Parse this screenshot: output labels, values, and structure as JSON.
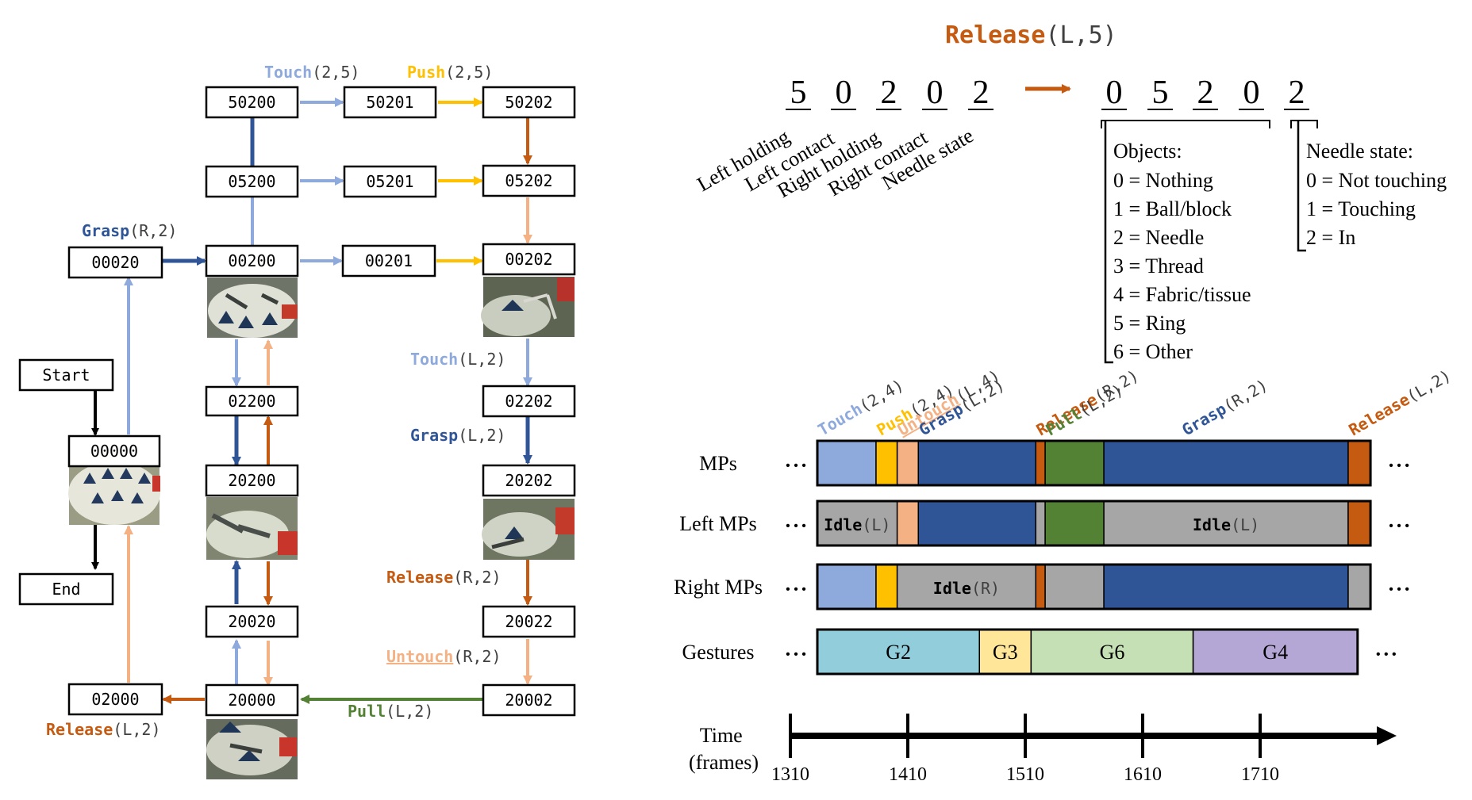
{
  "colors": {
    "touch": "#8EA9DB",
    "push": "#FFC000",
    "untouch": "#F4B183",
    "grasp": "#2F5597",
    "release": "#C55A11",
    "pull": "#548235",
    "idle": "#A6A6A6",
    "g2": "#92CDDC",
    "g3": "#FFE699",
    "g6": "#C5E0B4",
    "g4": "#B4A7D6"
  },
  "flow": {
    "states": {
      "start": "Start",
      "end": "End",
      "s00000": "00000",
      "s00020": "00020",
      "s02000": "02000",
      "s00200": "00200",
      "s05200": "05200",
      "s50200": "50200",
      "s02200": "02200",
      "s20200": "20200",
      "s20020": "20020",
      "s20000": "20000",
      "s00201": "00201",
      "s05201": "05201",
      "s50201": "50201",
      "s00202": "00202",
      "s05202": "05202",
      "s50202": "50202",
      "s02202": "02202",
      "s20202": "20202",
      "s20022": "20022",
      "s20002": "20002"
    },
    "labels": {
      "touch25": {
        "name": "Touch",
        "args": "(2,5)"
      },
      "push25": {
        "name": "Push",
        "args": "(2,5)"
      },
      "graspR2": {
        "name": "Grasp",
        "args": "(R,2)"
      },
      "touchL2": {
        "name": "Touch",
        "args": "(L,2)"
      },
      "graspL2": {
        "name": "Grasp",
        "args": "(L,2)"
      },
      "releaseR2": {
        "name": "Release",
        "args": "(R,2)"
      },
      "untouchR2": {
        "name": "Untouch",
        "args": "(R,2)"
      },
      "pullL2": {
        "name": "Pull",
        "args": "(L,2)"
      },
      "releaseL2": {
        "name": "Release",
        "args": "(L,2)"
      }
    }
  },
  "encoding": {
    "title": {
      "name": "Release",
      "args": "(L,5)"
    },
    "before_digits": [
      "5",
      "0",
      "2",
      "0",
      "2"
    ],
    "after_digits": [
      "0",
      "5",
      "2",
      "0",
      "2"
    ],
    "digit_labels": [
      "Left holding",
      "Left contact",
      "Right holding",
      "Right contact",
      "Needle state"
    ],
    "objects_legend": {
      "title": "Objects:",
      "items": [
        "0 = Nothing",
        "1 = Ball/block",
        "2 = Needle",
        "3 = Thread",
        "4 = Fabric/tissue",
        "5 = Ring",
        "6 = Other"
      ]
    },
    "needle_legend": {
      "title": "Needle state:",
      "items": [
        "0 = Not touching",
        "1 = Touching",
        "2 = In"
      ]
    }
  },
  "timeline": {
    "top_labels": [
      {
        "name": "Touch",
        "args": "(2,4)",
        "color": "touch"
      },
      {
        "name": "Push",
        "args": "(2,4)",
        "color": "push"
      },
      {
        "name": "Untouch",
        "args": "(L,4)",
        "color": "untouch"
      },
      {
        "name": "Grasp",
        "args": "(L,2)",
        "color": "grasp"
      },
      {
        "name": "Release",
        "args": "(R,2)",
        "color": "release"
      },
      {
        "name": "Pull",
        "args": "(L,2)",
        "color": "pull"
      },
      {
        "name": "Grasp",
        "args": "(R,2)",
        "color": "grasp"
      },
      {
        "name": "Release",
        "args": "(L,2)",
        "color": "release"
      }
    ],
    "rows": [
      {
        "label": "MPs",
        "segments": [
          {
            "start": 1310,
            "end": 1360,
            "color": "touch",
            "text": ""
          },
          {
            "start": 1360,
            "end": 1378,
            "color": "push",
            "text": ""
          },
          {
            "start": 1378,
            "end": 1396,
            "color": "untouch",
            "text": ""
          },
          {
            "start": 1396,
            "end": 1496,
            "color": "grasp",
            "text": ""
          },
          {
            "start": 1496,
            "end": 1504,
            "color": "release",
            "text": ""
          },
          {
            "start": 1504,
            "end": 1554,
            "color": "pull",
            "text": ""
          },
          {
            "start": 1554,
            "end": 1762,
            "color": "grasp",
            "text": ""
          },
          {
            "start": 1762,
            "end": 1781,
            "color": "release",
            "text": ""
          }
        ]
      },
      {
        "label": "Left MPs",
        "segments": [
          {
            "start": 1310,
            "end": 1378,
            "color": "idle",
            "text": "Idle",
            "args": "(L)"
          },
          {
            "start": 1378,
            "end": 1396,
            "color": "untouch",
            "text": ""
          },
          {
            "start": 1396,
            "end": 1496,
            "color": "grasp",
            "text": ""
          },
          {
            "start": 1496,
            "end": 1504,
            "color": "idle",
            "text": ""
          },
          {
            "start": 1504,
            "end": 1554,
            "color": "pull",
            "text": ""
          },
          {
            "start": 1554,
            "end": 1762,
            "color": "idle",
            "text": "Idle",
            "args": "(L)"
          },
          {
            "start": 1762,
            "end": 1781,
            "color": "release",
            "text": ""
          }
        ]
      },
      {
        "label": "Right MPs",
        "segments": [
          {
            "start": 1310,
            "end": 1360,
            "color": "touch",
            "text": ""
          },
          {
            "start": 1360,
            "end": 1378,
            "color": "push",
            "text": ""
          },
          {
            "start": 1378,
            "end": 1496,
            "color": "idle",
            "text": "Idle",
            "args": "(R)"
          },
          {
            "start": 1496,
            "end": 1504,
            "color": "release",
            "text": ""
          },
          {
            "start": 1504,
            "end": 1554,
            "color": "idle",
            "text": ""
          },
          {
            "start": 1554,
            "end": 1762,
            "color": "grasp",
            "text": ""
          },
          {
            "start": 1762,
            "end": 1781,
            "color": "idle",
            "text": ""
          }
        ]
      },
      {
        "label": "Gestures",
        "segments": [
          {
            "start": 1310,
            "end": 1448,
            "color": "g2",
            "text": "G2"
          },
          {
            "start": 1448,
            "end": 1492,
            "color": "g3",
            "text": "G3"
          },
          {
            "start": 1492,
            "end": 1630,
            "color": "g6",
            "text": "G6"
          },
          {
            "start": 1630,
            "end": 1770,
            "color": "g4",
            "text": "G4"
          }
        ]
      }
    ],
    "ellipsis": "• • •",
    "axis_label_line1": "Time",
    "axis_label_line2": "(frames)",
    "ticks": [
      1310,
      1410,
      1510,
      1610,
      1710
    ]
  }
}
